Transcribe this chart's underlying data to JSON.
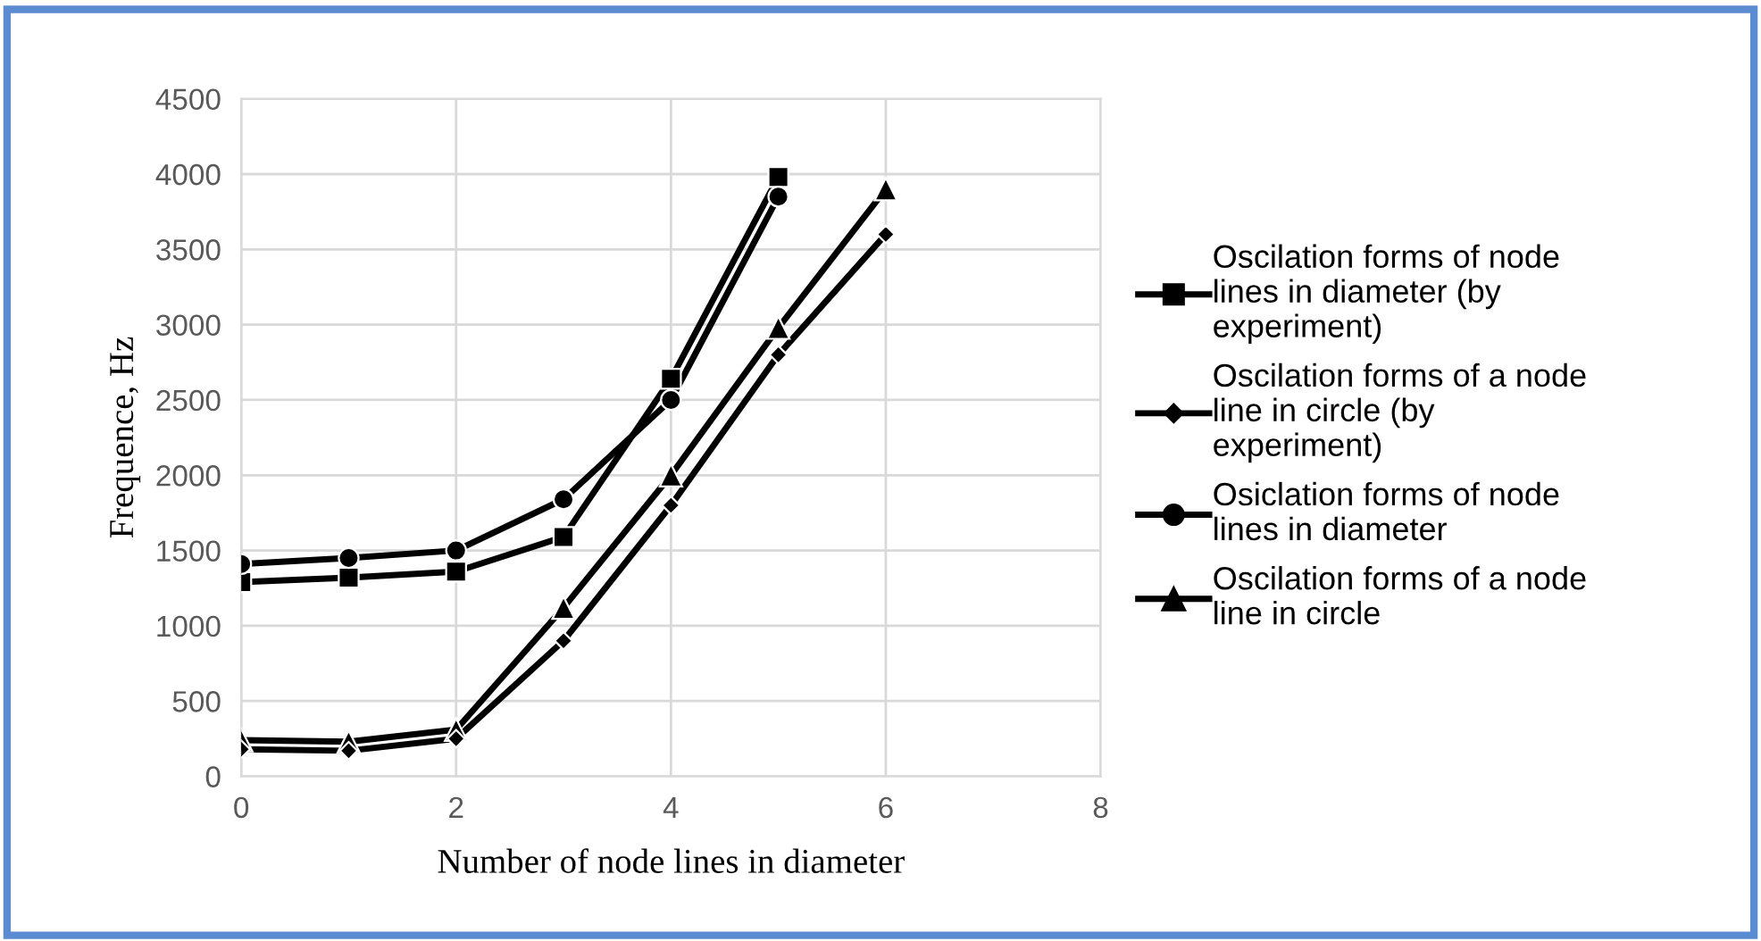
{
  "chart_data": {
    "type": "line",
    "xlabel": "Number of node lines in diameter",
    "ylabel": "Frequence, Hz",
    "xlim": [
      0,
      8
    ],
    "xticks": [
      0,
      2,
      4,
      6,
      8
    ],
    "ylim": [
      0,
      4500
    ],
    "yticks": [
      0,
      500,
      1000,
      1500,
      2000,
      2500,
      3000,
      3500,
      4000,
      4500
    ],
    "grid": true,
    "legend": "right",
    "line_style": "solid",
    "series": [
      {
        "name": "Oscilation forms of node lines in diameter (by experiment)",
        "color": "#000000",
        "marker": "square",
        "x": [
          0,
          1,
          2,
          3,
          4,
          5
        ],
        "values": [
          1290,
          1320,
          1360,
          1590,
          2640,
          3980
        ]
      },
      {
        "name": "Oscilation forms of a node line in circle (by experiment)",
        "color": "#000000",
        "marker": "diamond",
        "x": [
          0,
          1,
          2,
          3,
          4,
          5,
          6
        ],
        "values": [
          180,
          170,
          250,
          900,
          1800,
          2800,
          3600
        ]
      },
      {
        "name": "Osiclation forms of node lines in diameter",
        "color": "#000000",
        "marker": "circle",
        "x": [
          0,
          1,
          2,
          3,
          4,
          5
        ],
        "values": [
          1410,
          1450,
          1500,
          1840,
          2500,
          3850
        ]
      },
      {
        "name": "Oscilation forms of a node line in circle",
        "color": "#000000",
        "marker": "triangle",
        "x": [
          0,
          1,
          2,
          3,
          4,
          5,
          6
        ],
        "values": [
          240,
          230,
          310,
          1120,
          2000,
          2980,
          3900
        ]
      }
    ]
  }
}
